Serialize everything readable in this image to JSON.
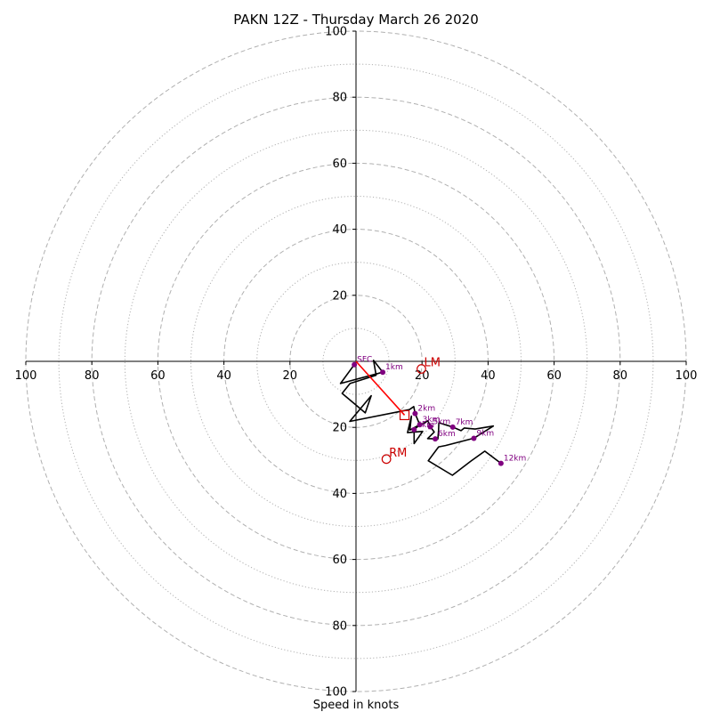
{
  "chart_data": {
    "type": "hodograph",
    "title": "PAKN 12Z - Thursday March 26 2020",
    "xlabel": "Speed in knots",
    "range": [
      -100,
      100
    ],
    "tick_values": [
      100,
      80,
      60,
      40,
      20
    ],
    "tick_labels": {
      "x": [
        "100",
        "80",
        "60",
        "40",
        "20",
        "20",
        "40",
        "60",
        "80",
        "100"
      ],
      "y": [
        "100",
        "80",
        "60",
        "40",
        "20",
        "20",
        "40",
        "60",
        "80",
        "100"
      ]
    },
    "rings": {
      "dashed": [
        20,
        40,
        60,
        80,
        100
      ],
      "dotted": [
        10,
        30,
        50,
        70,
        90
      ]
    },
    "colors": {
      "hodo": "#000000",
      "mean_wind": "#ff0000",
      "storm_motion": "#cc0000",
      "height_marker": "#800080",
      "grid": "#b0b0b0"
    },
    "trace": [
      [
        -0.5,
        -1.0
      ],
      [
        -4.7,
        -6.7
      ],
      [
        8.1,
        -3.3
      ],
      [
        5.3,
        0.3
      ],
      [
        6.1,
        -4.2
      ],
      [
        -1.8,
        -6.7
      ],
      [
        -4.2,
        -9.7
      ],
      [
        2.8,
        -15.6
      ],
      [
        4.6,
        -10.4
      ],
      [
        -1.9,
        -18.2
      ],
      [
        16.2,
        -14.6
      ],
      [
        17.5,
        -13.7
      ],
      [
        17.9,
        -15.8
      ],
      [
        19.3,
        -19.2
      ],
      [
        16.3,
        -20.8
      ],
      [
        16.8,
        -16.6
      ],
      [
        15.6,
        -21.6
      ],
      [
        20.2,
        -21.2
      ],
      [
        17.6,
        -24.9
      ],
      [
        17.6,
        -20.7
      ],
      [
        18.9,
        -19.6
      ],
      [
        21.8,
        -18.0
      ],
      [
        22.5,
        -19.8
      ],
      [
        23.7,
        -21.4
      ],
      [
        21.7,
        -23.4
      ],
      [
        24.8,
        -23.5
      ],
      [
        25.0,
        -20.8
      ],
      [
        25.1,
        -18.6
      ],
      [
        29.3,
        -19.9
      ],
      [
        31.8,
        -21.0
      ],
      [
        32.8,
        -20.2
      ],
      [
        36.1,
        -20.5
      ],
      [
        41.6,
        -19.6
      ],
      [
        35.7,
        -23.3
      ],
      [
        27.1,
        -25.5
      ],
      [
        25.0,
        -25.9
      ],
      [
        21.9,
        -30.1
      ],
      [
        29.2,
        -34.5
      ],
      [
        34.7,
        -30.3
      ],
      [
        39.0,
        -27.2
      ],
      [
        43.9,
        -30.9
      ]
    ],
    "height_markers": [
      {
        "label": "SFC",
        "u": -0.5,
        "v": -1.0
      },
      {
        "label": "1km",
        "u": 8.1,
        "v": -3.3
      },
      {
        "label": "2km",
        "u": 17.9,
        "v": -15.8
      },
      {
        "label": "3km",
        "u": 19.3,
        "v": -19.2
      },
      {
        "label": "4km",
        "u": 17.6,
        "v": -20.7
      },
      {
        "label": "5km",
        "u": 22.5,
        "v": -19.8
      },
      {
        "label": "6km",
        "u": 24.0,
        "v": -23.5
      },
      {
        "label": "7km",
        "u": 29.3,
        "v": -19.9
      },
      {
        "label": "9km",
        "u": 35.7,
        "v": -23.3
      },
      {
        "label": "12km",
        "u": 43.9,
        "v": -30.9
      }
    ],
    "mean_wind": {
      "from": [
        0,
        0
      ],
      "to": [
        14.7,
        -16.3
      ]
    },
    "storm_motion": [
      {
        "label": "LM",
        "u": 19.8,
        "v": -2.3
      },
      {
        "label": "RM",
        "u": 9.2,
        "v": -29.6
      }
    ]
  }
}
